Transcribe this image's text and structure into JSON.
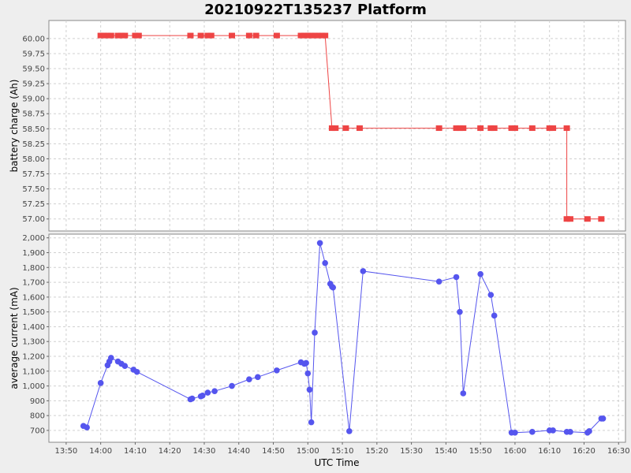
{
  "chart_data": {
    "type": "line",
    "title": "20210922T135237 Platform",
    "xlabel": "UTC Time",
    "x_ticks": [
      "13:50",
      "14:00",
      "14:10",
      "14:20",
      "14:30",
      "14:40",
      "14:50",
      "15:00",
      "15:10",
      "15:20",
      "15:30",
      "15:40",
      "15:50",
      "16:00",
      "16:10",
      "16:20",
      "16:30"
    ],
    "xlim": [
      "13:45",
      "16:32"
    ],
    "grid": true,
    "colors": {
      "charge": "#ee4444",
      "current": "#5555ee"
    },
    "panels": [
      {
        "ylabel": "battery charge (Ah)",
        "ylim": [
          56.8,
          60.3
        ],
        "y_ticks": [
          "57.00",
          "57.25",
          "57.50",
          "57.75",
          "58.00",
          "58.25",
          "58.50",
          "58.75",
          "59.00",
          "59.25",
          "59.50",
          "59.75",
          "60.00"
        ],
        "marker": "square",
        "x": [
          "14:00",
          "14:01",
          "14:02",
          "14:03",
          "14:05",
          "14:06",
          "14:07",
          "14:10",
          "14:11",
          "14:26",
          "14:29",
          "14:31",
          "14:32",
          "14:38",
          "14:43",
          "14:45",
          "14:51",
          "14:58",
          "14:59",
          "15:00",
          "15:01",
          "15:02",
          "15:03",
          "15:04",
          "15:05",
          "15:07",
          "15:08",
          "15:11",
          "15:15",
          "15:38",
          "15:43",
          "15:44",
          "15:45",
          "15:50",
          "15:53",
          "15:54",
          "15:59",
          "16:00",
          "16:05",
          "16:10",
          "16:11",
          "16:15",
          "16:15",
          "16:16",
          "16:21",
          "16:25"
        ],
        "y": [
          60.05,
          60.05,
          60.05,
          60.05,
          60.05,
          60.05,
          60.05,
          60.05,
          60.05,
          60.05,
          60.05,
          60.05,
          60.05,
          60.05,
          60.05,
          60.05,
          60.05,
          60.05,
          60.05,
          60.05,
          60.05,
          60.05,
          60.05,
          60.05,
          60.05,
          58.51,
          58.51,
          58.51,
          58.51,
          58.51,
          58.51,
          58.51,
          58.51,
          58.51,
          58.51,
          58.51,
          58.51,
          58.51,
          58.51,
          58.51,
          58.51,
          58.51,
          57.0,
          57.0,
          57.0,
          57.0
        ]
      },
      {
        "ylabel": "average current (mA)",
        "ylim": [
          620,
          2025
        ],
        "y_ticks": [
          "700",
          "800",
          "900",
          "1,000",
          "1,100",
          "1,200",
          "1,300",
          "1,400",
          "1,500",
          "1,600",
          "1,700",
          "1,800",
          "1,900",
          "2,000"
        ],
        "marker": "circle",
        "x": [
          "13:55",
          "13:56",
          "14:00",
          "14:02",
          "14:02.5",
          "14:03",
          "14:05",
          "14:06",
          "14:07",
          "14:09.5",
          "14:10.5",
          "14:26",
          "14:26.5",
          "14:29",
          "14:29.5",
          "14:31",
          "14:33",
          "14:38",
          "14:43",
          "14:45.5",
          "14:51",
          "14:58",
          "14:59",
          "14:59.5",
          "15:00",
          "15:00.5",
          "15:01",
          "15:02",
          "15:03.5",
          "15:05",
          "15:06.5",
          "15:07",
          "15:07.3",
          "15:12",
          "15:16",
          "15:38",
          "15:43",
          "15:44",
          "15:45",
          "15:50",
          "15:53",
          "15:54",
          "15:59",
          "16:00",
          "16:05",
          "16:10",
          "16:11",
          "16:15",
          "16:16",
          "16:21",
          "16:21.5",
          "16:25",
          "16:25.5"
        ],
        "y": [
          730,
          720,
          1020,
          1140,
          1165,
          1190,
          1165,
          1150,
          1135,
          1110,
          1095,
          910,
          915,
          930,
          935,
          955,
          965,
          1000,
          1045,
          1060,
          1105,
          1160,
          1150,
          1155,
          1085,
          975,
          755,
          1360,
          1965,
          1830,
          1690,
          1670,
          1665,
          695,
          1775,
          1705,
          1735,
          1500,
          950,
          1755,
          1615,
          1475,
          685,
          685,
          690,
          700,
          700,
          690,
          690,
          685,
          695,
          780,
          780
        ]
      }
    ]
  }
}
